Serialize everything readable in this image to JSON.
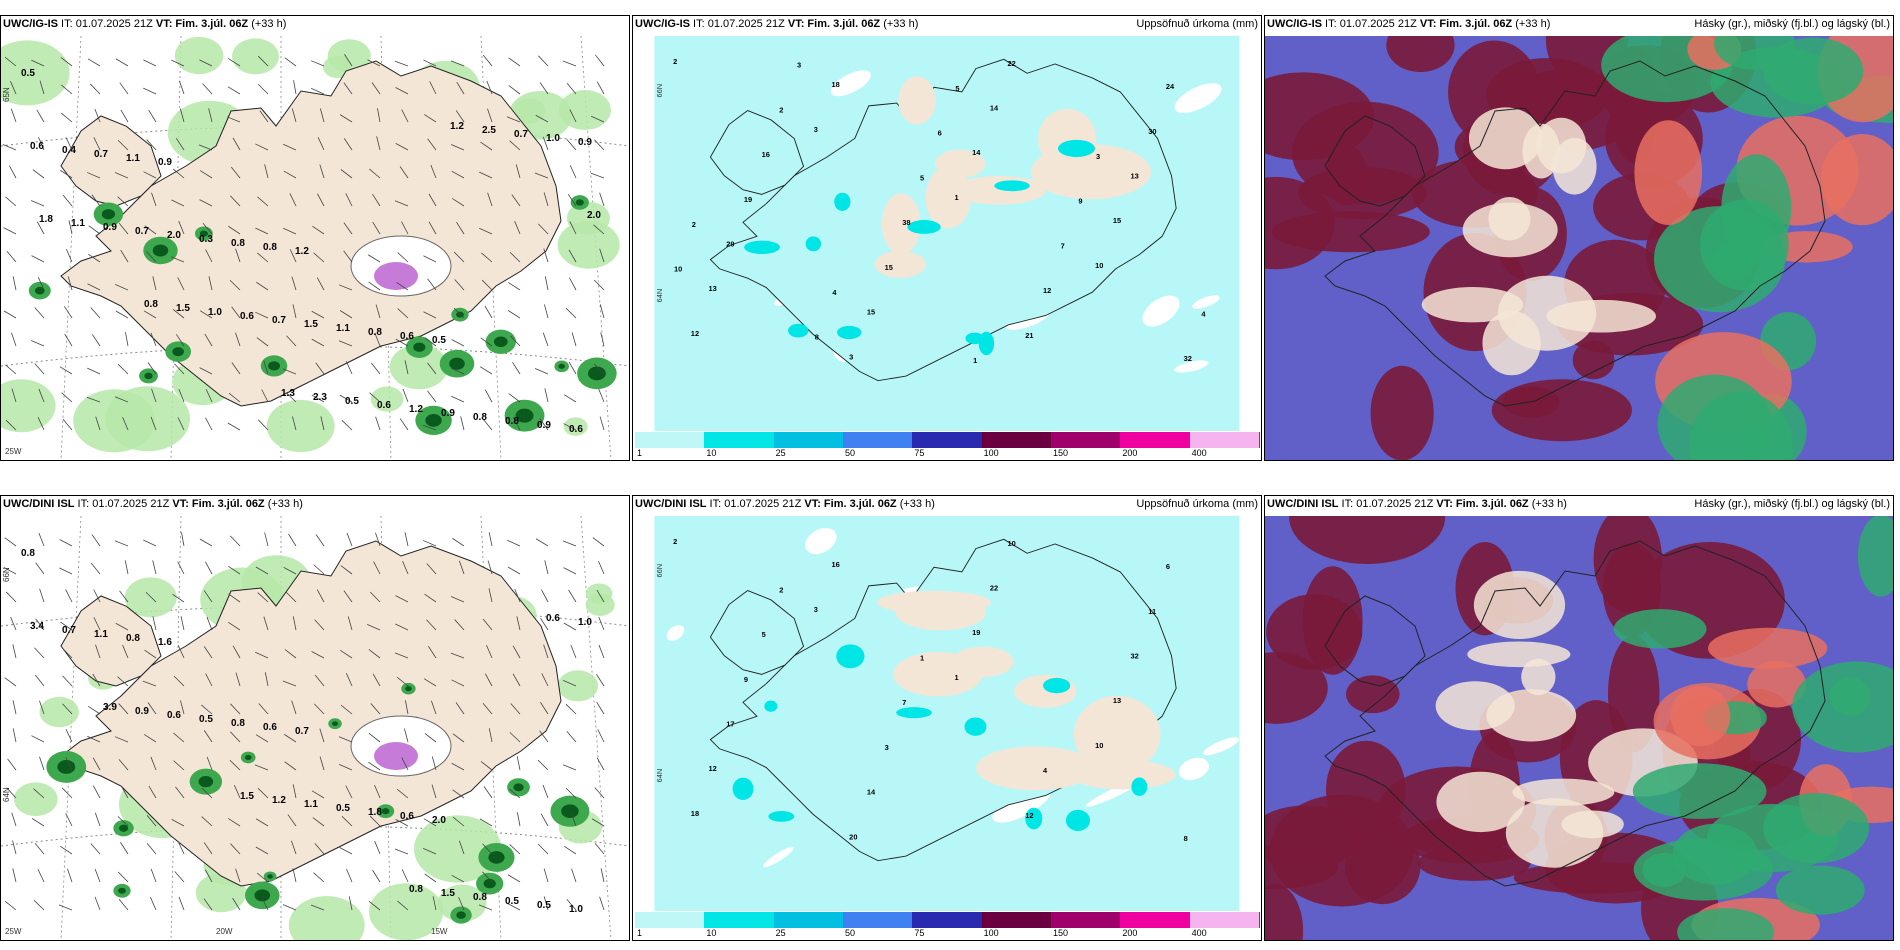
{
  "panels": [
    {
      "title_model": "UWC/IG-IS",
      "title_it": " IT: 01.07.2025 21Z ",
      "title_vt": "VT: Fim. 3.júl. 06Z",
      "title_lead": " (+33 h)",
      "right_title": "",
      "kind": "wind",
      "labels": [
        "0.5",
        "0.9",
        "1.2",
        "0.5",
        "0.6",
        "1.1",
        "0.8",
        "0.6",
        "0.9",
        "0.7",
        "0.8",
        "0.8",
        "0.8",
        "0.4",
        "0.3",
        "1.1",
        "0.8",
        "0.6",
        "2.0",
        "1.5",
        "0.9",
        "0.9",
        "0.7",
        "0.7",
        "1.2",
        "1.0",
        "0.9",
        "0.6",
        "0.6",
        "0.7",
        "1.1",
        "1.0",
        "0.5",
        "2.5",
        "1.8",
        "1.5",
        "2.3",
        "1.2",
        "2.0",
        "0.8",
        "1.3"
      ],
      "axes": [
        "65N",
        "25W"
      ]
    },
    {
      "title_model": "UWC/IG-IS",
      "title_it": " IT: 01.07.2025 21Z ",
      "title_vt": "VT: Fim. 3.júl. 06Z",
      "title_lead": " (+33 h)",
      "right_title": "Uppsöfnuð úrkoma (mm)",
      "kind": "precip",
      "labels": [
        "2",
        "3",
        "1",
        "10",
        "12",
        "18",
        "14",
        "15",
        "13",
        "3",
        "14",
        "13",
        "29",
        "15",
        "22",
        "30",
        "19",
        "15",
        "21",
        "24",
        "16",
        "38",
        "12",
        "32",
        "2",
        "5",
        "7",
        "4",
        "3",
        "6",
        "9",
        "10",
        "8",
        "5",
        "3",
        "2",
        "4",
        "1"
      ],
      "axes": [
        "66N",
        "64N"
      ]
    },
    {
      "title_model": "UWC/IG-IS",
      "title_it": " IT: 01.07.2025 21Z ",
      "title_vt": "VT: Fim. 3.júl. 06Z",
      "title_lead": " (+33 h)",
      "right_title": "Hásky (gr.), miðský (fj.bl.) og lágský (bl.)",
      "kind": "cloud",
      "labels": [],
      "axes": []
    },
    {
      "title_model": "UWC/DINI ISL",
      "title_it": " IT: 01.07.2025 21Z ",
      "title_vt": "VT: Fim. 3.júl. 06Z",
      "title_lead": " (+33 h)",
      "right_title": "",
      "kind": "wind",
      "labels": [
        "0.8",
        "1.6",
        "0.7",
        "2.0",
        "1.0",
        "0.8",
        "0.6",
        "0.6",
        "0.5",
        "1.1",
        "0.8",
        "1.8",
        "0.5",
        "0.7",
        "0.5",
        "0.5",
        "0.8",
        "3.4",
        "0.6",
        "1.1",
        "1.5",
        "1.0",
        "0.9",
        "1.2",
        "0.8",
        "0.6",
        "3.9",
        "1.5"
      ],
      "axes": [
        "66N",
        "64N",
        "25W",
        "20W",
        "15W"
      ]
    },
    {
      "title_model": "UWC/DINI ISL",
      "title_it": " IT: 01.07.2025 21Z ",
      "title_vt": "VT: Fim. 3.júl. 06Z",
      "title_lead": " (+33 h)",
      "right_title": "Uppsöfnuð úrkoma (mm)",
      "kind": "precip",
      "labels": [
        "2",
        "3",
        "1",
        "10",
        "18",
        "16",
        "19",
        "13",
        "12",
        "20",
        "22",
        "32",
        "17",
        "14",
        "10",
        "11",
        "9",
        "3",
        "12",
        "6",
        "5",
        "7",
        "4",
        "8",
        "2",
        "1"
      ],
      "axes": [
        "66N",
        "64N"
      ]
    },
    {
      "title_model": "UWC/DINI ISL",
      "title_it": " IT: 01.07.2025 21Z ",
      "title_vt": "VT: Fim. 3.júl. 06Z",
      "title_lead": " (+33 h)",
      "right_title": "Hásky (gr.), miðský (fj.bl.) og lágský (bl.)",
      "kind": "cloud",
      "labels": [],
      "axes": []
    }
  ],
  "colorbar": {
    "ticks": [
      "1",
      "10",
      "25",
      "50",
      "75",
      "100",
      "150",
      "200",
      "400"
    ],
    "colors": [
      "#bff6f6",
      "#00e5e5",
      "#00bfe0",
      "#4080f0",
      "#2a2ab0",
      "#6b0040",
      "#a0006b",
      "#f000a0",
      "#f5b3f0"
    ]
  },
  "colors": {
    "land": "#f4e6d6",
    "precip_bg": "#b8f7f7",
    "wind_green_light": "#b6e8a8",
    "wind_green": "#3ea84e",
    "wind_green_dark": "#0a5a1e",
    "cloud_low": "#6060c8",
    "cloud_mid": "#7a1a3a",
    "cloud_high": "#2faa70"
  }
}
